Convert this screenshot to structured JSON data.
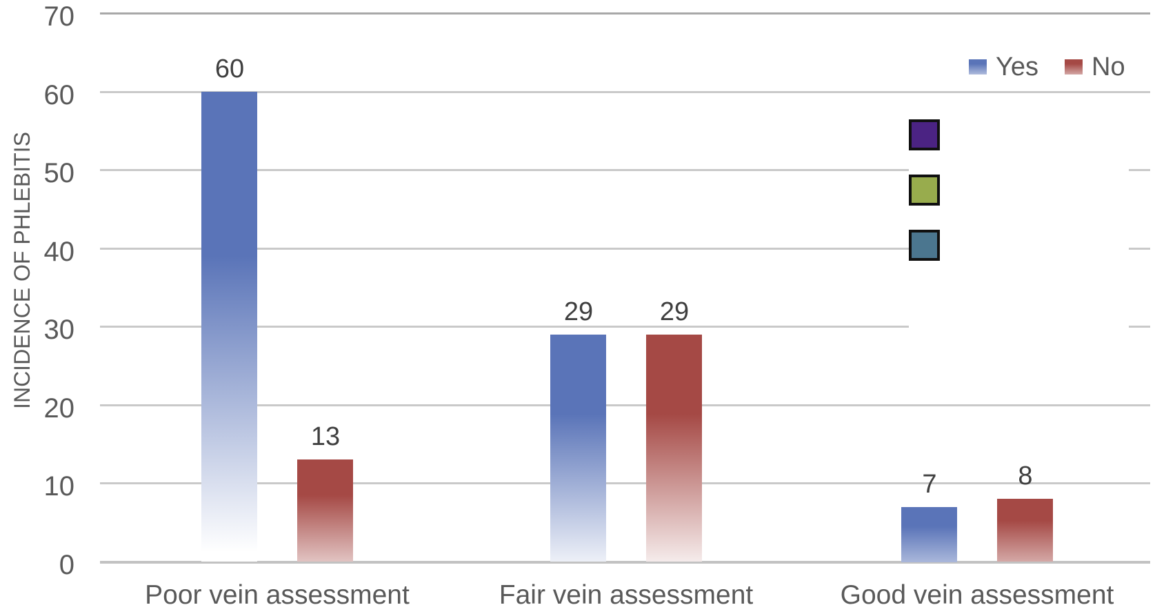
{
  "chart_data": {
    "type": "bar",
    "title": "",
    "categories": [
      "Poor vein assessment",
      "Fair vein assessment",
      "Good vein assessment"
    ],
    "series": [
      {
        "name": "Yes",
        "color": "#5a74b8",
        "values": [
          60,
          29,
          7
        ]
      },
      {
        "name": "No",
        "color": "#a54945",
        "values": [
          13,
          29,
          8
        ]
      }
    ],
    "data_labels": {
      "Yes": [
        60,
        29,
        7
      ],
      "No": [
        13,
        29,
        8
      ]
    },
    "xlabel": "",
    "ylabel": "INCIDENCE OF PHLEBITIS",
    "ylim": [
      0,
      70
    ],
    "yticks": [
      0,
      10,
      20,
      30,
      40,
      50,
      60,
      70
    ],
    "grid": true,
    "gridline_color": "#c9c9c9",
    "bar_style": "vertical gradient fading to white toward the bar base",
    "legend_position": "top-right"
  },
  "legend": {
    "items": [
      {
        "label": "Yes",
        "color": "#5a74b8"
      },
      {
        "label": "No",
        "color": "#a54945"
      }
    ]
  },
  "overlay_swatches": {
    "description": "three black-bordered color squares overlapping the right side of the plot",
    "colors": [
      "#4b2383",
      "#98ac4d",
      "#4b768f"
    ],
    "names": [
      "purple-swatch",
      "olive-green-swatch",
      "teal-swatch"
    ]
  },
  "text_colors": {
    "axis_text": "#595959",
    "data_label_text": "#3f3f3f"
  }
}
